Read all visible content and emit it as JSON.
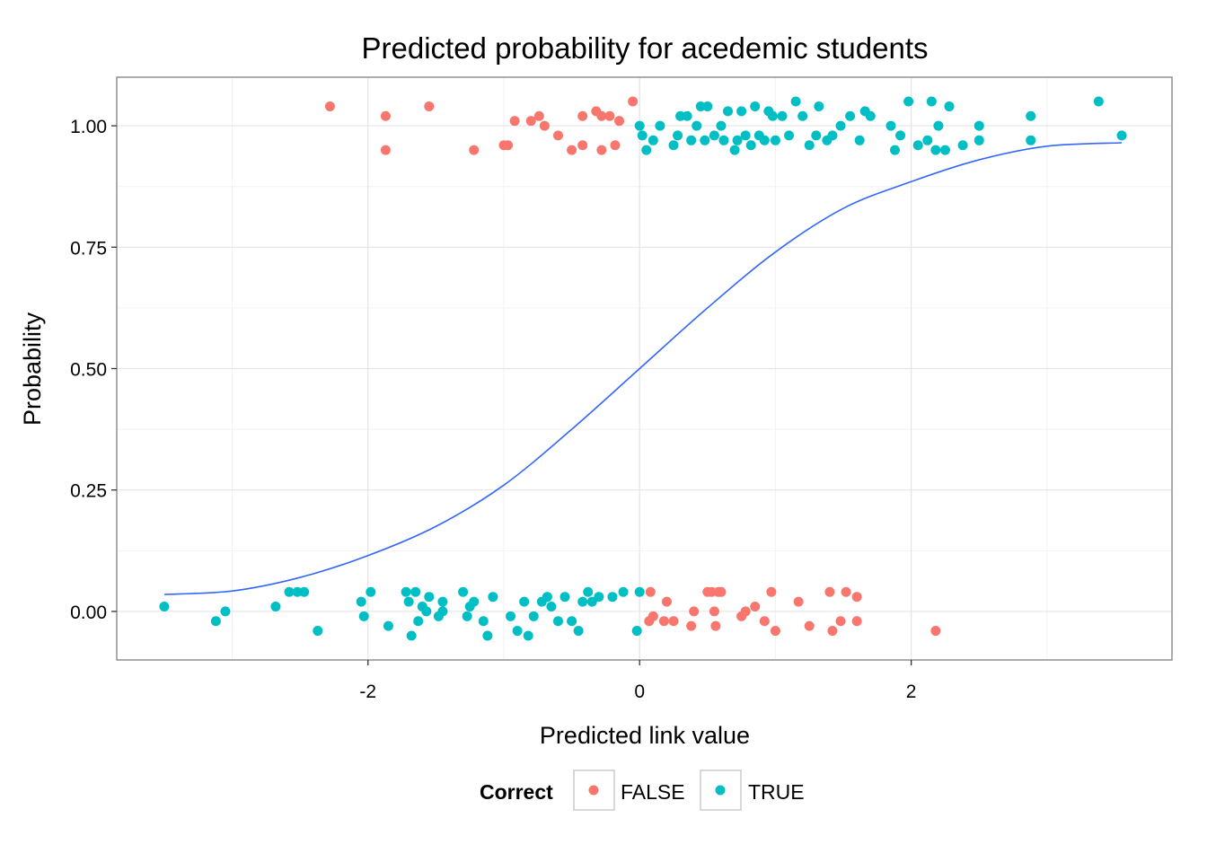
{
  "chart_data": {
    "type": "scatter",
    "title": "Predicted probability for acedemic students",
    "xlabel": "Predicted link value",
    "ylabel": "Probability",
    "xlim": [
      -3.85,
      3.92
    ],
    "ylim": [
      -0.1,
      1.1
    ],
    "x_ticks": [
      -2,
      0,
      2
    ],
    "x_tick_labels": [
      "-2",
      "0",
      "2"
    ],
    "y_ticks": [
      0,
      0.25,
      0.5,
      0.75,
      1
    ],
    "y_tick_labels": [
      "0.00",
      "0.25",
      "0.50",
      "0.75",
      "1.00"
    ],
    "grid": true,
    "legend": {
      "title": "Correct",
      "position": "bottom",
      "entries": [
        {
          "label": "FALSE",
          "color": "#F8766D"
        },
        {
          "label": "TRUE",
          "color": "#00BFC4"
        }
      ]
    },
    "colors": {
      "FALSE": "#F8766D",
      "TRUE": "#00BFC4",
      "curve": "#3366FF"
    },
    "curve": {
      "x": [
        -3.5,
        -3.0,
        -2.5,
        -2.0,
        -1.5,
        -1.0,
        -0.5,
        0.0,
        0.5,
        1.0,
        1.5,
        2.0,
        2.5,
        3.0,
        3.55
      ],
      "y": [
        0.035,
        0.042,
        0.07,
        0.115,
        0.175,
        0.26,
        0.375,
        0.5,
        0.625,
        0.74,
        0.83,
        0.885,
        0.93,
        0.958,
        0.965
      ]
    },
    "series": [
      {
        "name": "FALSE",
        "points": [
          [
            -2.28,
            1.04
          ],
          [
            -1.87,
            1.02
          ],
          [
            -1.87,
            0.95
          ],
          [
            -1.55,
            1.04
          ],
          [
            -1.22,
            0.95
          ],
          [
            -1.0,
            0.96
          ],
          [
            -0.97,
            0.96
          ],
          [
            -0.92,
            1.01
          ],
          [
            -0.8,
            1.01
          ],
          [
            -0.74,
            1.02
          ],
          [
            -0.7,
            1.0
          ],
          [
            -0.6,
            0.98
          ],
          [
            -0.5,
            0.95
          ],
          [
            -0.42,
            1.02
          ],
          [
            -0.42,
            0.96
          ],
          [
            -0.32,
            1.03
          ],
          [
            -0.28,
            1.02
          ],
          [
            -0.28,
            0.95
          ],
          [
            -0.22,
            1.02
          ],
          [
            -0.18,
            0.96
          ],
          [
            -0.15,
            1.01
          ],
          [
            -0.05,
            1.05
          ],
          [
            0.07,
            -0.02
          ],
          [
            0.08,
            0.04
          ],
          [
            0.1,
            -0.01
          ],
          [
            0.18,
            -0.02
          ],
          [
            0.2,
            0.02
          ],
          [
            0.25,
            -0.02
          ],
          [
            0.38,
            -0.03
          ],
          [
            0.4,
            0.0
          ],
          [
            0.5,
            0.04
          ],
          [
            0.53,
            0.04
          ],
          [
            0.55,
            0.0
          ],
          [
            0.56,
            -0.03
          ],
          [
            0.58,
            0.04
          ],
          [
            0.6,
            0.04
          ],
          [
            0.75,
            -0.01
          ],
          [
            0.78,
            0.0
          ],
          [
            0.85,
            0.01
          ],
          [
            0.92,
            -0.02
          ],
          [
            0.97,
            0.04
          ],
          [
            1.0,
            -0.04
          ],
          [
            1.17,
            0.02
          ],
          [
            1.25,
            -0.03
          ],
          [
            1.4,
            0.04
          ],
          [
            1.42,
            -0.04
          ],
          [
            1.48,
            -0.02
          ],
          [
            1.52,
            0.04
          ],
          [
            1.6,
            0.03
          ],
          [
            1.6,
            -0.02
          ],
          [
            2.18,
            -0.04
          ]
        ]
      },
      {
        "name": "TRUE",
        "points": [
          [
            -3.5,
            0.01
          ],
          [
            -3.12,
            -0.02
          ],
          [
            -3.05,
            0.0
          ],
          [
            -2.68,
            0.01
          ],
          [
            -2.58,
            0.04
          ],
          [
            -2.52,
            0.04
          ],
          [
            -2.47,
            0.04
          ],
          [
            -2.37,
            -0.04
          ],
          [
            -2.05,
            0.02
          ],
          [
            -2.03,
            -0.01
          ],
          [
            -1.98,
            0.04
          ],
          [
            -1.85,
            -0.03
          ],
          [
            -1.72,
            0.04
          ],
          [
            -1.7,
            0.02
          ],
          [
            -1.68,
            -0.05
          ],
          [
            -1.65,
            0.04
          ],
          [
            -1.63,
            -0.02
          ],
          [
            -1.6,
            0.01
          ],
          [
            -1.57,
            0.0
          ],
          [
            -1.55,
            0.03
          ],
          [
            -1.48,
            -0.01
          ],
          [
            -1.45,
            0.0
          ],
          [
            -1.45,
            0.02
          ],
          [
            -1.3,
            0.04
          ],
          [
            -1.27,
            -0.01
          ],
          [
            -1.25,
            0.01
          ],
          [
            -1.22,
            0.02
          ],
          [
            -1.15,
            -0.02
          ],
          [
            -1.12,
            -0.05
          ],
          [
            -1.08,
            0.03
          ],
          [
            -0.95,
            -0.01
          ],
          [
            -0.9,
            -0.04
          ],
          [
            -0.85,
            0.02
          ],
          [
            -0.82,
            -0.05
          ],
          [
            -0.78,
            -0.01
          ],
          [
            -0.72,
            0.02
          ],
          [
            -0.68,
            0.03
          ],
          [
            -0.65,
            0.01
          ],
          [
            -0.6,
            -0.02
          ],
          [
            -0.55,
            0.03
          ],
          [
            -0.5,
            -0.02
          ],
          [
            -0.45,
            -0.04
          ],
          [
            -0.42,
            0.02
          ],
          [
            -0.38,
            0.04
          ],
          [
            -0.35,
            0.02
          ],
          [
            -0.3,
            0.03
          ],
          [
            -0.2,
            0.03
          ],
          [
            -0.12,
            0.04
          ],
          [
            -0.02,
            -0.04
          ],
          [
            0.0,
            0.04
          ],
          [
            0.0,
            1.0
          ],
          [
            0.02,
            0.98
          ],
          [
            0.05,
            0.95
          ],
          [
            0.1,
            0.97
          ],
          [
            0.15,
            1.0
          ],
          [
            0.25,
            0.96
          ],
          [
            0.28,
            0.98
          ],
          [
            0.3,
            1.02
          ],
          [
            0.35,
            1.02
          ],
          [
            0.38,
            0.97
          ],
          [
            0.42,
            1.0
          ],
          [
            0.45,
            1.04
          ],
          [
            0.48,
            0.97
          ],
          [
            0.5,
            1.04
          ],
          [
            0.55,
            0.98
          ],
          [
            0.6,
            1.0
          ],
          [
            0.62,
            0.97
          ],
          [
            0.65,
            1.03
          ],
          [
            0.7,
            0.95
          ],
          [
            0.72,
            0.97
          ],
          [
            0.75,
            1.03
          ],
          [
            0.78,
            0.98
          ],
          [
            0.82,
            0.96
          ],
          [
            0.85,
            1.04
          ],
          [
            0.88,
            0.98
          ],
          [
            0.92,
            0.97
          ],
          [
            0.95,
            1.03
          ],
          [
            0.98,
            1.02
          ],
          [
            1.0,
            0.97
          ],
          [
            1.05,
            1.02
          ],
          [
            1.1,
            0.98
          ],
          [
            1.15,
            1.05
          ],
          [
            1.2,
            1.02
          ],
          [
            1.25,
            0.96
          ],
          [
            1.3,
            0.98
          ],
          [
            1.32,
            1.04
          ],
          [
            1.38,
            0.97
          ],
          [
            1.42,
            0.98
          ],
          [
            1.48,
            1.0
          ],
          [
            1.55,
            1.02
          ],
          [
            1.62,
            0.97
          ],
          [
            1.66,
            1.03
          ],
          [
            1.7,
            1.02
          ],
          [
            1.85,
            1.0
          ],
          [
            1.88,
            0.95
          ],
          [
            1.92,
            0.98
          ],
          [
            1.98,
            1.05
          ],
          [
            2.05,
            0.96
          ],
          [
            2.12,
            0.97
          ],
          [
            2.15,
            1.05
          ],
          [
            2.18,
            0.95
          ],
          [
            2.2,
            1.0
          ],
          [
            2.25,
            0.95
          ],
          [
            2.28,
            1.04
          ],
          [
            2.38,
            0.96
          ],
          [
            2.5,
            1.0
          ],
          [
            2.5,
            0.97
          ],
          [
            2.88,
            1.02
          ],
          [
            2.88,
            0.97
          ],
          [
            3.38,
            1.05
          ],
          [
            3.55,
            0.98
          ]
        ]
      }
    ]
  }
}
